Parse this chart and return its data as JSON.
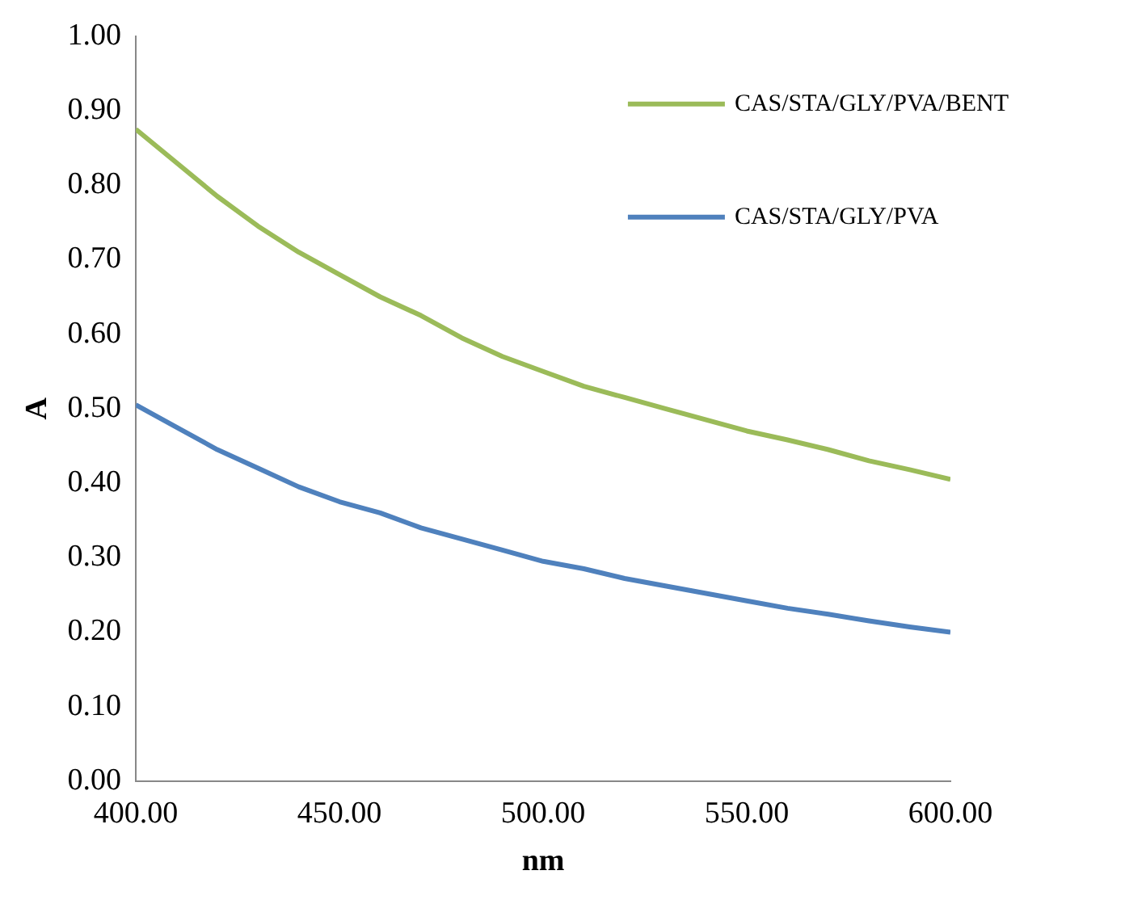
{
  "chart_data": {
    "type": "line",
    "xlabel": "nm",
    "ylabel": "A",
    "legend": "top right",
    "grid": false,
    "marker": "none",
    "line_style": "solid",
    "xlim": [
      400,
      600
    ],
    "xticks": [
      {
        "value": 400,
        "label": "400.00"
      },
      {
        "value": 450,
        "label": "450.00"
      },
      {
        "value": 500,
        "label": "500.00"
      },
      {
        "value": 550,
        "label": "550.00"
      },
      {
        "value": 600,
        "label": "600.00"
      }
    ],
    "ylim": [
      0,
      1
    ],
    "yticks": [
      {
        "value": 0,
        "label": "0.00"
      },
      {
        "value": 0.1,
        "label": "0.10"
      },
      {
        "value": 0.2,
        "label": "0.20"
      },
      {
        "value": 0.3,
        "label": "0.30"
      },
      {
        "value": 0.4,
        "label": "0.40"
      },
      {
        "value": 0.5,
        "label": "0.50"
      },
      {
        "value": 0.6,
        "label": "0.60"
      },
      {
        "value": 0.7,
        "label": "0.70"
      },
      {
        "value": 0.8,
        "label": "0.80"
      },
      {
        "value": 0.9,
        "label": "0.90"
      },
      {
        "value": 1,
        "label": "1.00"
      }
    ],
    "x": [
      400,
      410,
      420,
      430,
      440,
      450,
      460,
      470,
      480,
      490,
      500,
      510,
      520,
      530,
      540,
      550,
      560,
      570,
      580,
      590,
      600
    ],
    "series": [
      {
        "name": "CAS/STA/GLY/PVA/BENT",
        "color": "#9bbb59",
        "values": [
          0.875,
          0.83,
          0.785,
          0.745,
          0.71,
          0.68,
          0.65,
          0.625,
          0.595,
          0.57,
          0.55,
          0.53,
          0.515,
          0.5,
          0.485,
          0.47,
          0.458,
          0.445,
          0.43,
          0.418,
          0.405
        ]
      },
      {
        "name": "CAS/STA/GLY/PVA",
        "color": "#4f81bd",
        "values": [
          0.505,
          0.475,
          0.445,
          0.42,
          0.395,
          0.375,
          0.36,
          0.34,
          0.325,
          0.31,
          0.295,
          0.285,
          0.272,
          0.262,
          0.252,
          0.242,
          0.232,
          0.224,
          0.215,
          0.207,
          0.2
        ]
      }
    ]
  }
}
